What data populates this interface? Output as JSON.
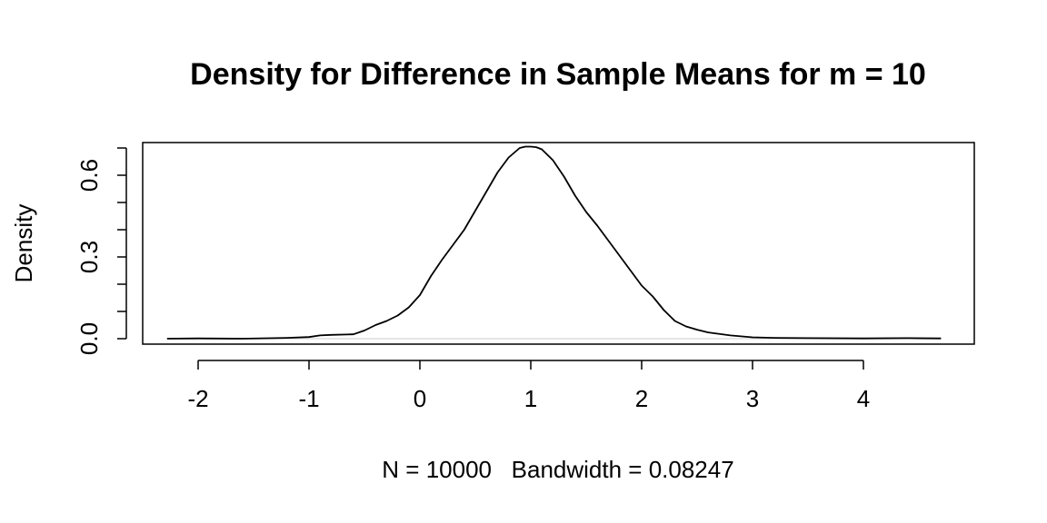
{
  "chart_data": {
    "type": "line",
    "title": "Density for Difference in Sample Means for m = 10",
    "xlabel": "N = 10000   Bandwidth = 0.08247",
    "ylabel": "Density",
    "xlim": [
      -2.5,
      5.0
    ],
    "ylim": [
      -0.02,
      0.72
    ],
    "x_ticks": [
      -2,
      -1,
      0,
      1,
      2,
      3,
      4
    ],
    "x_tick_labels": [
      "-2",
      "-1",
      "0",
      "1",
      "2",
      "3",
      "4"
    ],
    "y_ticks": [
      0.0,
      0.1,
      0.2,
      0.3,
      0.4,
      0.5,
      0.6,
      0.7
    ],
    "y_tick_labels": [
      {
        "value": 0.0,
        "label": "0.0"
      },
      {
        "value": 0.3,
        "label": "0.3"
      },
      {
        "value": 0.6,
        "label": "0.6"
      }
    ],
    "baseline": 0.0,
    "grid": false,
    "line_color": "#000000",
    "baseline_color": "#dddddd",
    "series": [
      {
        "x": [
          -2.28,
          -2.0,
          -1.6,
          -1.2,
          -1.0,
          -0.9,
          -0.8,
          -0.6,
          -0.5,
          -0.4,
          -0.3,
          -0.2,
          -0.1,
          0.0,
          0.1,
          0.2,
          0.3,
          0.4,
          0.5,
          0.6,
          0.7,
          0.8,
          0.9,
          0.95,
          1.0,
          1.05,
          1.1,
          1.2,
          1.3,
          1.4,
          1.5,
          1.6,
          1.7,
          1.8,
          1.9,
          2.0,
          2.1,
          2.2,
          2.3,
          2.4,
          2.5,
          2.6,
          2.8,
          3.0,
          3.2,
          3.5,
          4.0,
          4.4,
          4.7
        ],
        "y": [
          0.0,
          0.001,
          0.0,
          0.003,
          0.006,
          0.012,
          0.014,
          0.016,
          0.03,
          0.05,
          0.065,
          0.085,
          0.115,
          0.16,
          0.23,
          0.29,
          0.345,
          0.4,
          0.47,
          0.54,
          0.61,
          0.665,
          0.7,
          0.705,
          0.705,
          0.703,
          0.695,
          0.655,
          0.595,
          0.525,
          0.465,
          0.415,
          0.36,
          0.305,
          0.25,
          0.195,
          0.155,
          0.105,
          0.065,
          0.045,
          0.033,
          0.023,
          0.012,
          0.005,
          0.003,
          0.002,
          0.001,
          0.002,
          0.001
        ]
      }
    ]
  }
}
